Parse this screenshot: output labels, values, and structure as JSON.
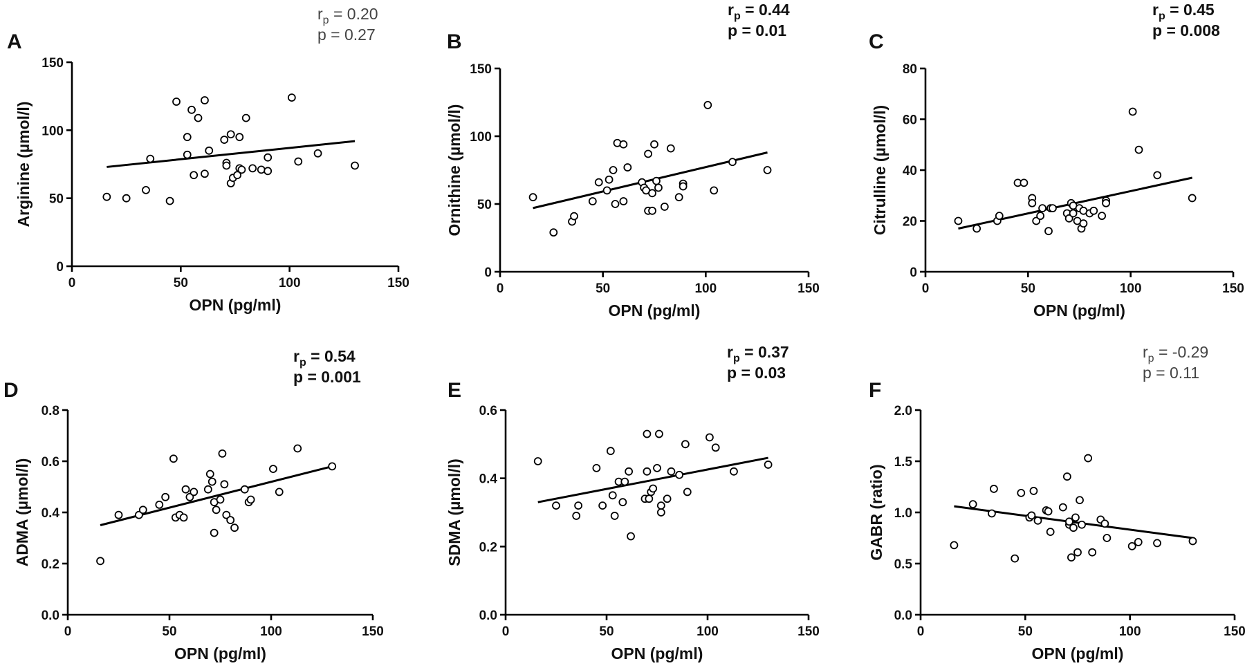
{
  "figure": {
    "colors": {
      "ink": "#000000",
      "marker_fill": "#ffffff",
      "light_stat": "#444444"
    }
  },
  "chart_data": [
    {
      "panel": "A",
      "type": "scatter",
      "title": "",
      "xlabel": "OPN (pg/ml)",
      "ylabel": "Arginine (µmol/l)",
      "xlim": [
        0,
        150
      ],
      "ylim": [
        0,
        150
      ],
      "xticks": [
        0,
        50,
        100,
        150
      ],
      "yticks": [
        0,
        50,
        100,
        150
      ],
      "xtick_labels": [
        "0",
        "50",
        "100",
        "150"
      ],
      "ytick_labels": [
        "0",
        "50",
        "100",
        "150"
      ],
      "stats": {
        "r_main": "r",
        "r_sub": "p",
        "r_value": " = 0.20",
        "p_text": "p = 0.27",
        "bold": false
      },
      "fit": {
        "x": [
          16,
          130
        ],
        "y": [
          73,
          92
        ]
      },
      "points": [
        [
          16,
          51
        ],
        [
          25,
          50
        ],
        [
          34,
          56
        ],
        [
          36,
          79
        ],
        [
          45,
          48
        ],
        [
          48,
          121
        ],
        [
          53,
          95
        ],
        [
          53,
          82
        ],
        [
          55,
          115
        ],
        [
          56,
          67
        ],
        [
          58,
          109
        ],
        [
          61,
          122
        ],
        [
          61,
          68
        ],
        [
          63,
          85
        ],
        [
          70,
          93
        ],
        [
          71,
          76
        ],
        [
          71,
          74
        ],
        [
          73,
          97
        ],
        [
          73,
          61
        ],
        [
          74,
          65
        ],
        [
          76,
          67
        ],
        [
          77,
          95
        ],
        [
          77,
          72
        ],
        [
          78,
          71
        ],
        [
          80,
          109
        ],
        [
          83,
          72
        ],
        [
          87,
          71
        ],
        [
          90,
          70
        ],
        [
          90,
          80
        ],
        [
          101,
          124
        ],
        [
          104,
          77
        ],
        [
          113,
          83
        ],
        [
          130,
          74
        ]
      ]
    },
    {
      "panel": "B",
      "type": "scatter",
      "title": "",
      "xlabel": "OPN (pg/ml)",
      "ylabel": "Ornithine (µmol/l)",
      "xlim": [
        0,
        150
      ],
      "ylim": [
        0,
        150
      ],
      "xticks": [
        0,
        50,
        100,
        150
      ],
      "yticks": [
        0,
        50,
        100,
        150
      ],
      "xtick_labels": [
        "0",
        "50",
        "100",
        "150"
      ],
      "ytick_labels": [
        "0",
        "50",
        "100",
        "150"
      ],
      "stats": {
        "r_main": "r",
        "r_sub": "p",
        "r_value": " = 0.44",
        "p_text": "p = 0.01",
        "bold": true
      },
      "fit": {
        "x": [
          16,
          130
        ],
        "y": [
          47,
          88
        ]
      },
      "points": [
        [
          16,
          55
        ],
        [
          26,
          29
        ],
        [
          35,
          37
        ],
        [
          36,
          41
        ],
        [
          45,
          52
        ],
        [
          48,
          66
        ],
        [
          52,
          60
        ],
        [
          53,
          68
        ],
        [
          55,
          75
        ],
        [
          56,
          50
        ],
        [
          57,
          95
        ],
        [
          60,
          94
        ],
        [
          60,
          52
        ],
        [
          62,
          77
        ],
        [
          69,
          66
        ],
        [
          70,
          62
        ],
        [
          71,
          60
        ],
        [
          72,
          45
        ],
        [
          72,
          87
        ],
        [
          74,
          45
        ],
        [
          74,
          58
        ],
        [
          75,
          94
        ],
        [
          76,
          67
        ],
        [
          77,
          62
        ],
        [
          80,
          48
        ],
        [
          83,
          91
        ],
        [
          87,
          55
        ],
        [
          89,
          65
        ],
        [
          89,
          63
        ],
        [
          101,
          123
        ],
        [
          104,
          60
        ],
        [
          113,
          81
        ],
        [
          130,
          75
        ]
      ]
    },
    {
      "panel": "C",
      "type": "scatter",
      "title": "",
      "xlabel": "OPN (pg/ml)",
      "ylabel": "Citrulline (µmol/l)",
      "xlim": [
        0,
        150
      ],
      "ylim": [
        0,
        80
      ],
      "xticks": [
        0,
        50,
        100,
        150
      ],
      "yticks": [
        0,
        20,
        40,
        60,
        80
      ],
      "xtick_labels": [
        "0",
        "50",
        "100",
        "150"
      ],
      "ytick_labels": [
        "0",
        "20",
        "40",
        "60",
        "80"
      ],
      "stats": {
        "r_main": "r",
        "r_sub": "p",
        "r_value": " = 0.45",
        "p_text": "p = 0.008",
        "bold": true
      },
      "fit": {
        "x": [
          16,
          130
        ],
        "y": [
          17,
          37
        ]
      },
      "points": [
        [
          16,
          20
        ],
        [
          25,
          17
        ],
        [
          35,
          20
        ],
        [
          36,
          22
        ],
        [
          45,
          35
        ],
        [
          48,
          35
        ],
        [
          52,
          29
        ],
        [
          52,
          27
        ],
        [
          54,
          20
        ],
        [
          56,
          22
        ],
        [
          57,
          25
        ],
        [
          60,
          16
        ],
        [
          61,
          25
        ],
        [
          62,
          25
        ],
        [
          69,
          23
        ],
        [
          70,
          21
        ],
        [
          71,
          27
        ],
        [
          72,
          26
        ],
        [
          72,
          23
        ],
        [
          74,
          20
        ],
        [
          75,
          25
        ],
        [
          76,
          17
        ],
        [
          77,
          19
        ],
        [
          77,
          24
        ],
        [
          80,
          23
        ],
        [
          82,
          24
        ],
        [
          86,
          22
        ],
        [
          88,
          28
        ],
        [
          88,
          27
        ],
        [
          101,
          63
        ],
        [
          104,
          48
        ],
        [
          113,
          38
        ],
        [
          130,
          29
        ]
      ]
    },
    {
      "panel": "D",
      "type": "scatter",
      "title": "",
      "xlabel": "OPN (pg/ml)",
      "ylabel": "ADMA (µmol/l)",
      "xlim": [
        0,
        150
      ],
      "ylim": [
        0,
        0.8
      ],
      "xticks": [
        0,
        50,
        100,
        150
      ],
      "yticks": [
        0,
        0.2,
        0.4,
        0.6,
        0.8
      ],
      "xtick_labels": [
        "0",
        "50",
        "100",
        "150"
      ],
      "ytick_labels": [
        "0.0",
        "0.2",
        "0.4",
        "0.6",
        "0.8"
      ],
      "stats": {
        "r_main": "r",
        "r_sub": "p",
        "r_value": " = 0.54",
        "p_text": "p = 0.001",
        "bold": true
      },
      "fit": {
        "x": [
          16,
          130
        ],
        "y": [
          0.35,
          0.58
        ]
      },
      "points": [
        [
          16,
          0.21
        ],
        [
          25,
          0.39
        ],
        [
          35,
          0.39
        ],
        [
          37,
          0.41
        ],
        [
          45,
          0.43
        ],
        [
          48,
          0.46
        ],
        [
          52,
          0.61
        ],
        [
          53,
          0.38
        ],
        [
          55,
          0.39
        ],
        [
          57,
          0.38
        ],
        [
          58,
          0.49
        ],
        [
          60,
          0.46
        ],
        [
          62,
          0.48
        ],
        [
          69,
          0.49
        ],
        [
          70,
          0.55
        ],
        [
          71,
          0.52
        ],
        [
          72,
          0.32
        ],
        [
          72,
          0.44
        ],
        [
          73,
          0.41
        ],
        [
          75,
          0.45
        ],
        [
          76,
          0.63
        ],
        [
          77,
          0.51
        ],
        [
          78,
          0.39
        ],
        [
          80,
          0.37
        ],
        [
          82,
          0.34
        ],
        [
          87,
          0.49
        ],
        [
          89,
          0.44
        ],
        [
          90,
          0.45
        ],
        [
          101,
          0.57
        ],
        [
          104,
          0.48
        ],
        [
          113,
          0.65
        ],
        [
          130,
          0.58
        ]
      ]
    },
    {
      "panel": "E",
      "type": "scatter",
      "title": "",
      "xlabel": "OPN (pg/ml)",
      "ylabel": "SDMA (µmol/l)",
      "xlim": [
        0,
        150
      ],
      "ylim": [
        0,
        0.6
      ],
      "xticks": [
        0,
        50,
        100,
        150
      ],
      "yticks": [
        0,
        0.2,
        0.4,
        0.6
      ],
      "xtick_labels": [
        "0",
        "50",
        "100",
        "150"
      ],
      "ytick_labels": [
        "0.0",
        "0.2",
        "0.4",
        "0.6"
      ],
      "stats": {
        "r_main": "r",
        "r_sub": "p",
        "r_value": " = 0.37",
        "p_text": "p = 0.03",
        "bold": true
      },
      "fit": {
        "x": [
          16,
          130
        ],
        "y": [
          0.33,
          0.46
        ]
      },
      "points": [
        [
          16,
          0.45
        ],
        [
          25,
          0.32
        ],
        [
          35,
          0.29
        ],
        [
          36,
          0.32
        ],
        [
          45,
          0.43
        ],
        [
          48,
          0.32
        ],
        [
          52,
          0.48
        ],
        [
          53,
          0.35
        ],
        [
          54,
          0.29
        ],
        [
          56,
          0.39
        ],
        [
          58,
          0.33
        ],
        [
          59,
          0.39
        ],
        [
          61,
          0.42
        ],
        [
          62,
          0.23
        ],
        [
          69,
          0.34
        ],
        [
          70,
          0.42
        ],
        [
          70,
          0.53
        ],
        [
          71,
          0.34
        ],
        [
          72,
          0.36
        ],
        [
          73,
          0.37
        ],
        [
          75,
          0.43
        ],
        [
          76,
          0.53
        ],
        [
          77,
          0.3
        ],
        [
          77,
          0.32
        ],
        [
          80,
          0.34
        ],
        [
          82,
          0.42
        ],
        [
          86,
          0.41
        ],
        [
          89,
          0.5
        ],
        [
          90,
          0.36
        ],
        [
          101,
          0.52
        ],
        [
          104,
          0.49
        ],
        [
          113,
          0.42
        ],
        [
          130,
          0.44
        ]
      ]
    },
    {
      "panel": "F",
      "type": "scatter",
      "title": "",
      "xlabel": "OPN (pg/ml)",
      "ylabel": "GABR (ratio)",
      "xlim": [
        0,
        150
      ],
      "ylim": [
        0,
        2.0
      ],
      "xticks": [
        0,
        50,
        100,
        150
      ],
      "yticks": [
        0,
        0.5,
        1.0,
        1.5,
        2.0
      ],
      "xtick_labels": [
        "0",
        "50",
        "100",
        "150"
      ],
      "ytick_labels": [
        "0.0",
        "0.5",
        "1.0",
        "1.5",
        "2.0"
      ],
      "stats": {
        "r_main": "r",
        "r_sub": "p",
        "r_value": " = -0.29",
        "p_text": "p = 0.11",
        "bold": false
      },
      "fit": {
        "x": [
          16,
          130
        ],
        "y": [
          1.06,
          0.75
        ]
      },
      "points": [
        [
          16,
          0.68
        ],
        [
          25,
          1.08
        ],
        [
          34,
          0.99
        ],
        [
          35,
          1.23
        ],
        [
          45,
          0.55
        ],
        [
          48,
          1.19
        ],
        [
          52,
          0.95
        ],
        [
          53,
          0.97
        ],
        [
          54,
          1.21
        ],
        [
          56,
          0.92
        ],
        [
          60,
          1.02
        ],
        [
          61,
          1.01
        ],
        [
          62,
          0.81
        ],
        [
          68,
          1.05
        ],
        [
          70,
          1.35
        ],
        [
          71,
          0.88
        ],
        [
          71,
          0.91
        ],
        [
          72,
          0.56
        ],
        [
          73,
          0.85
        ],
        [
          74,
          0.95
        ],
        [
          75,
          0.61
        ],
        [
          76,
          1.12
        ],
        [
          77,
          0.88
        ],
        [
          80,
          1.53
        ],
        [
          82,
          0.61
        ],
        [
          86,
          0.93
        ],
        [
          88,
          0.89
        ],
        [
          89,
          0.75
        ],
        [
          101,
          0.67
        ],
        [
          104,
          0.71
        ],
        [
          113,
          0.7
        ],
        [
          130,
          0.72
        ]
      ]
    }
  ]
}
